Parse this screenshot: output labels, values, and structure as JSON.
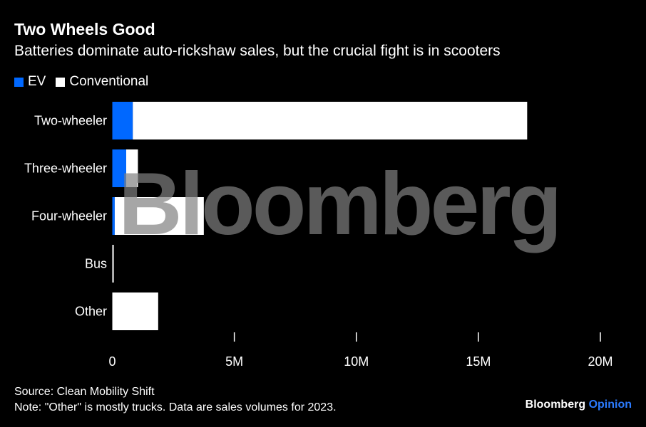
{
  "chart_data": {
    "type": "bar",
    "orientation": "horizontal",
    "stacked": true,
    "title": "Two Wheels Good",
    "subtitle": "Batteries dominate auto-rickshaw sales, but the crucial fight is in scooters",
    "categories": [
      "Two-wheeler",
      "Three-wheeler",
      "Four-wheeler",
      "Bus",
      "Other"
    ],
    "series": [
      {
        "name": "EV",
        "color": "#0068ff",
        "values": [
          0.84,
          0.57,
          0.1,
          0.0,
          0.0
        ]
      },
      {
        "name": "Conventional",
        "color": "#ffffff",
        "values": [
          16.16,
          0.48,
          3.65,
          0.06,
          1.88
        ]
      }
    ],
    "xlim": [
      0,
      20
    ],
    "x_ticks": [
      0,
      5,
      10,
      15,
      20
    ],
    "x_tick_labels": [
      "0",
      "5M",
      "10M",
      "15M",
      "20M"
    ],
    "legend_position": "top-left",
    "grid": false
  },
  "footer": {
    "source": "Source: Clean Mobility Shift",
    "note": "Note: \"Other\" is mostly trucks. Data are sales volumes for 2023.",
    "brand": "Bloomberg",
    "brand_accent": "Opinion",
    "brand_accent_color": "#2b7bff"
  },
  "watermark": "Bloomberg"
}
